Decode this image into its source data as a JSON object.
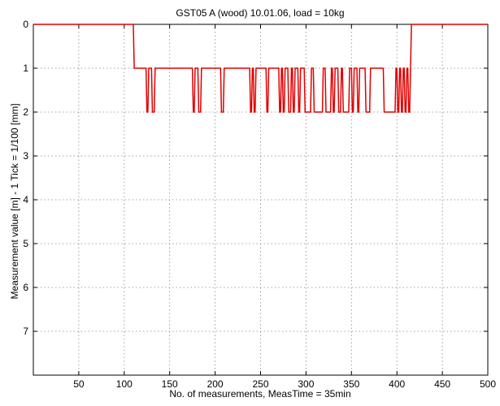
{
  "chart_data": {
    "type": "line",
    "title": "GST05 A (wood) 10.01.06, load = 10kg",
    "xlabel": "No. of measurements, MeasTime = 35min",
    "ylabel": "Measurement value [m] - 1 Tick = 1/100 [mm]",
    "xlim": [
      0,
      500
    ],
    "ylim": [
      0,
      8
    ],
    "y_axis_inverted": true,
    "grid": true,
    "xticks": [
      50,
      100,
      150,
      200,
      250,
      300,
      350,
      400,
      450,
      500
    ],
    "yticks": [
      0,
      1,
      2,
      3,
      4,
      5,
      6,
      7
    ],
    "series": [
      {
        "color": "#e00000",
        "x": [
          0,
          110,
          111,
          124,
          125,
          126,
          127,
          130,
          131,
          133,
          134,
          175,
          176,
          177,
          178,
          181,
          182,
          184,
          185,
          206,
          207,
          208,
          209,
          210,
          238,
          239,
          240,
          241,
          242,
          243,
          244,
          245,
          256,
          257,
          258,
          259,
          270,
          271,
          272,
          273,
          274,
          275,
          276,
          277,
          280,
          281,
          283,
          284,
          285,
          286,
          287,
          288,
          291,
          292,
          293,
          294,
          298,
          299,
          305,
          306,
          308,
          309,
          318,
          319,
          321,
          322,
          327,
          328,
          329,
          330,
          331,
          332,
          335,
          336,
          338,
          339,
          340,
          341,
          347,
          348,
          350,
          351,
          352,
          353,
          356,
          357,
          358,
          359,
          365,
          366,
          370,
          371,
          385,
          386,
          398,
          399,
          400,
          401,
          402,
          403,
          404,
          405,
          406,
          407,
          408,
          409,
          410,
          411,
          412,
          413,
          414,
          415,
          416,
          500
        ],
        "y": [
          0,
          0,
          1,
          1,
          2,
          2,
          1,
          1,
          2,
          2,
          1,
          1,
          2,
          2,
          1,
          1,
          2,
          2,
          1,
          1,
          2,
          2,
          2,
          1,
          1,
          2,
          2,
          1,
          1,
          2,
          2,
          1,
          1,
          2,
          2,
          1,
          1,
          2,
          2,
          1,
          1,
          2,
          2,
          1,
          1,
          2,
          2,
          1,
          1,
          2,
          2,
          1,
          1,
          2,
          2,
          1,
          1,
          2,
          2,
          1,
          1,
          2,
          2,
          1,
          1,
          2,
          2,
          1,
          1,
          2,
          2,
          1,
          1,
          2,
          2,
          1,
          1,
          2,
          2,
          1,
          1,
          2,
          2,
          1,
          1,
          2,
          2,
          1,
          1,
          2,
          2,
          1,
          1,
          2,
          2,
          1,
          1,
          2,
          2,
          1,
          1,
          2,
          2,
          1,
          1,
          2,
          2,
          1,
          1,
          2,
          2,
          1,
          0,
          0
        ]
      }
    ]
  }
}
